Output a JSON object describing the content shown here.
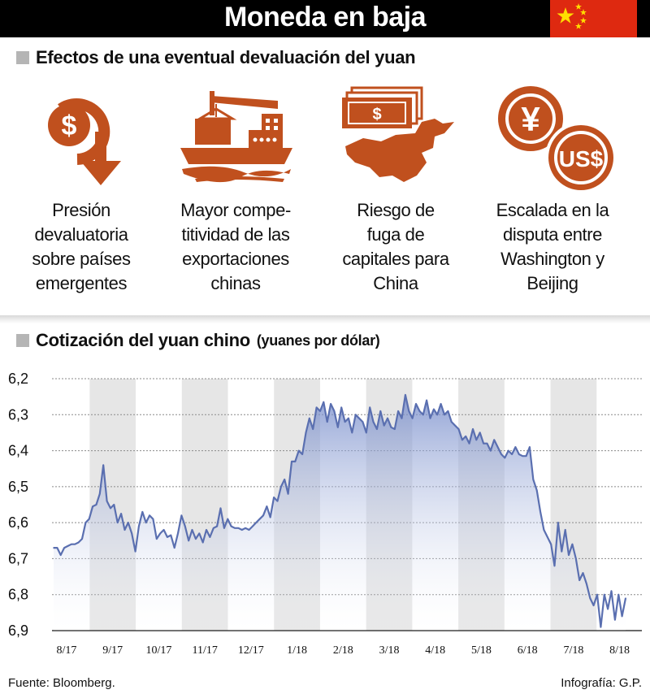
{
  "header": {
    "title": "Moneda en baja"
  },
  "colors": {
    "accent": "#c0501e",
    "flag_red": "#de2910",
    "flag_star": "#ffde00",
    "line": "#5a6fb0"
  },
  "effects": {
    "title": "Efectos de una eventual devaluación del yuan",
    "items": [
      {
        "icon": "dollar-down-arrow-icon",
        "lines": [
          "Presión",
          "devaluatoria",
          "sobre países",
          "emergentes"
        ]
      },
      {
        "icon": "cargo-ship-icon",
        "lines": [
          "Mayor compe-",
          "titividad de las",
          "exportaciones",
          "chinas"
        ]
      },
      {
        "icon": "money-over-china-map-icon",
        "lines": [
          "Riesgo de",
          "fuga de",
          "capitales para",
          "China"
        ]
      },
      {
        "icon": "yuan-vs-dollar-coins-icon",
        "lines": [
          "Escalada en la",
          "disputa entre",
          "Washington y",
          "Beijing"
        ]
      }
    ],
    "coin_labels": {
      "yuan": "¥",
      "dollar": "US$",
      "bill": "$"
    }
  },
  "chart_section": {
    "title": "Cotización del yuan chino",
    "unit": "(yuanes por dólar)"
  },
  "chart_data": {
    "type": "area",
    "title": "Cotización del yuan chino",
    "ylabel": "(yuanes por dólar)",
    "y_inverted": true,
    "ylim": [
      6.9,
      6.2
    ],
    "yticks": [
      "6,2",
      "6,3",
      "6,4",
      "6,5",
      "6,6",
      "6,7",
      "6,8",
      "6,9"
    ],
    "ytick_values": [
      6.2,
      6.3,
      6.4,
      6.5,
      6.6,
      6.7,
      6.8,
      6.9
    ],
    "xticks": [
      "8/17",
      "9/17",
      "10/17",
      "11/17",
      "12/17",
      "1/18",
      "2/18",
      "3/18",
      "4/18",
      "5/18",
      "6/18",
      "7/18",
      "8/18"
    ],
    "grid": true,
    "shaded_months": [
      "9/17",
      "11/17",
      "1/18",
      "3/18",
      "5/18",
      "7/18"
    ],
    "series": [
      {
        "values": [
          6.67,
          6.67,
          6.69,
          6.67,
          6.665,
          6.66,
          6.66,
          6.655,
          6.645,
          6.6,
          6.59,
          6.555,
          6.55,
          6.52,
          6.44,
          6.54,
          6.56,
          6.55,
          6.6,
          6.575,
          6.62,
          6.6,
          6.63,
          6.68,
          6.61,
          6.57,
          6.6,
          6.58,
          6.59,
          6.645,
          6.63,
          6.62,
          6.64,
          6.635,
          6.67,
          6.63,
          6.58,
          6.61,
          6.65,
          6.62,
          6.645,
          6.63,
          6.655,
          6.62,
          6.64,
          6.615,
          6.61,
          6.56,
          6.615,
          6.59,
          6.61,
          6.615,
          6.615,
          6.62,
          6.615,
          6.62,
          6.61,
          6.6,
          6.59,
          6.58,
          6.555,
          6.585,
          6.53,
          6.54,
          6.5,
          6.48,
          6.52,
          6.43,
          6.43,
          6.4,
          6.41,
          6.35,
          6.31,
          6.34,
          6.28,
          6.29,
          6.265,
          6.32,
          6.27,
          6.29,
          6.335,
          6.28,
          6.32,
          6.31,
          6.35,
          6.3,
          6.31,
          6.32,
          6.35,
          6.28,
          6.32,
          6.34,
          6.29,
          6.33,
          6.31,
          6.335,
          6.34,
          6.29,
          6.31,
          6.245,
          6.29,
          6.31,
          6.27,
          6.29,
          6.3,
          6.26,
          6.31,
          6.285,
          6.3,
          6.27,
          6.3,
          6.29,
          6.32,
          6.33,
          6.34,
          6.37,
          6.36,
          6.38,
          6.34,
          6.37,
          6.35,
          6.38,
          6.38,
          6.4,
          6.37,
          6.39,
          6.41,
          6.42,
          6.4,
          6.41,
          6.39,
          6.41,
          6.415,
          6.415,
          6.39,
          6.48,
          6.51,
          6.57,
          6.62,
          6.64,
          6.66,
          6.72,
          6.6,
          6.68,
          6.62,
          6.69,
          6.66,
          6.7,
          6.76,
          6.74,
          6.77,
          6.81,
          6.83,
          6.8,
          6.89,
          6.8,
          6.84,
          6.79,
          6.87,
          6.8,
          6.86,
          6.81
        ]
      }
    ]
  },
  "footer": {
    "source": "Fuente: Bloomberg.",
    "credit": "Infografía: G.P."
  }
}
